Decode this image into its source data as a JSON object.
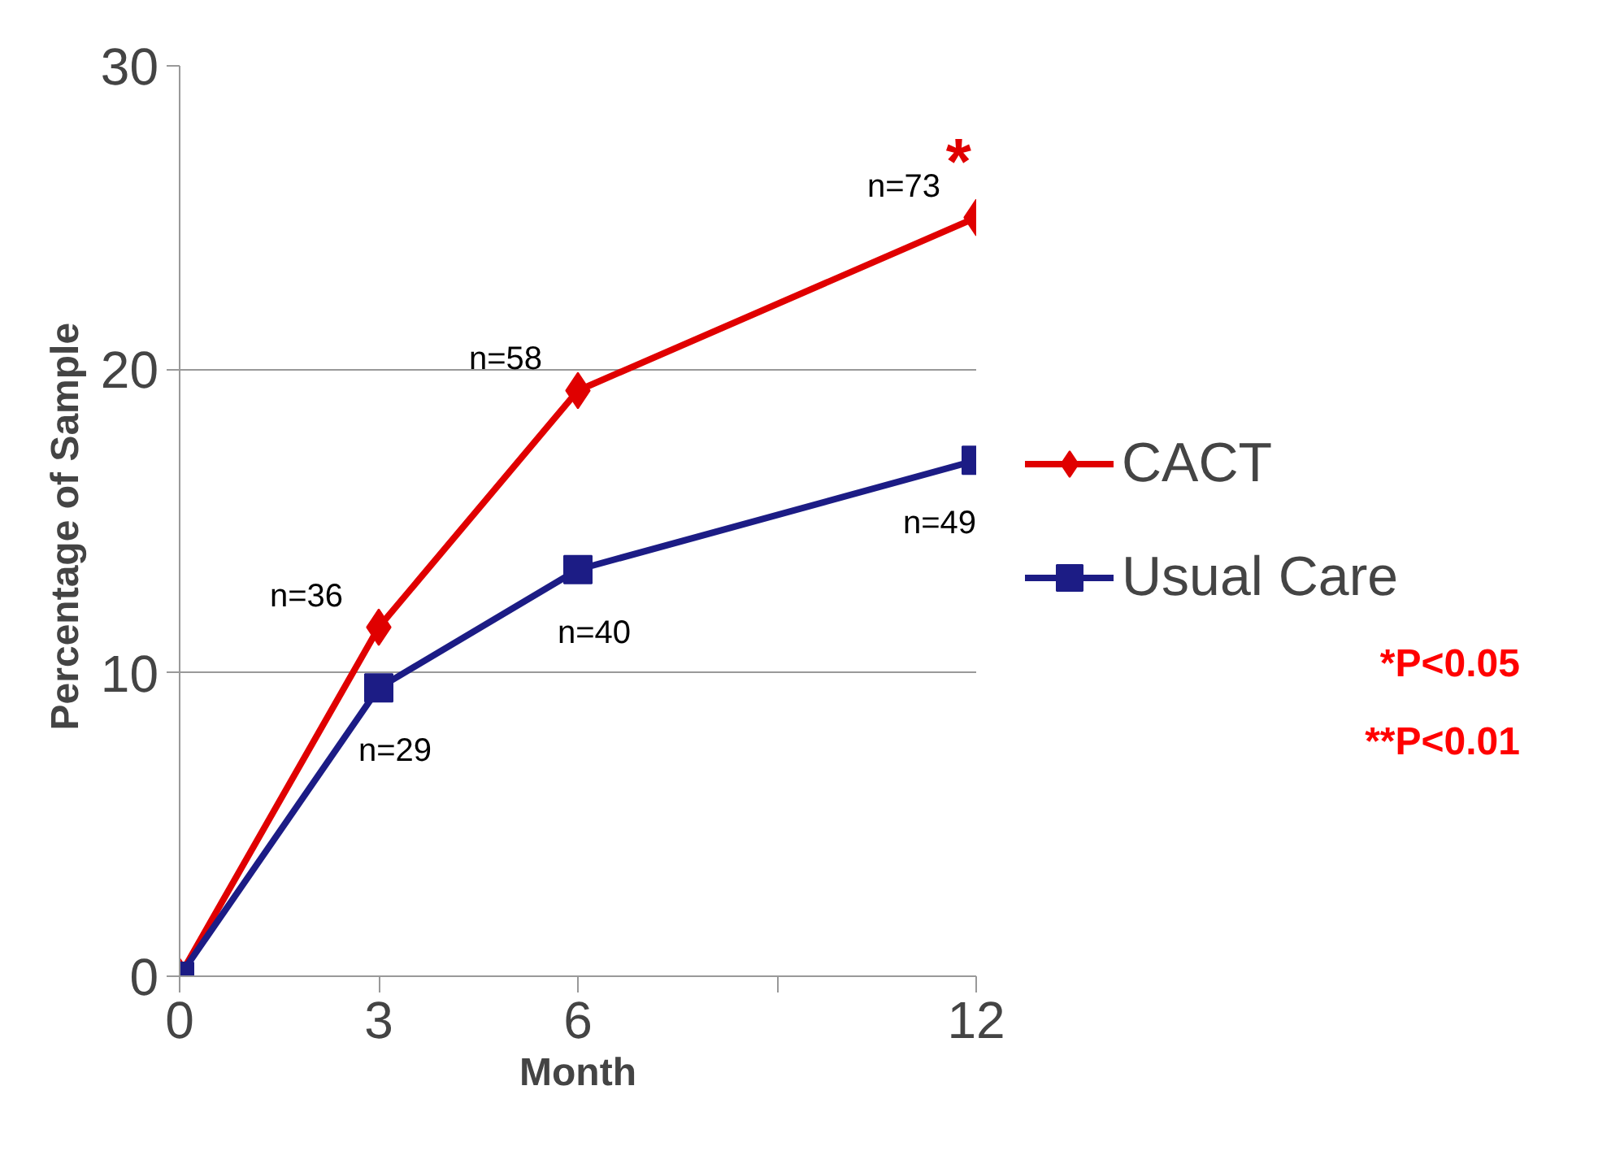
{
  "chart_data": {
    "type": "line",
    "xlabel": "Month",
    "ylabel": "Percentage  of Sample",
    "x": [
      0,
      3,
      6,
      12
    ],
    "series": [
      {
        "name": "CACT",
        "color": "#e00000",
        "marker": "diamond",
        "values": [
          0,
          11.5,
          19.3,
          25.0
        ]
      },
      {
        "name": "Usual Care",
        "color": "#1c1c85",
        "marker": "square",
        "values": [
          0,
          9.5,
          13.4,
          17.0
        ]
      }
    ],
    "xlim": [
      0,
      12
    ],
    "xticks": [
      0,
      3,
      6,
      {
        "value": 9,
        "label": null
      },
      12
    ],
    "ylim": [
      0,
      30
    ],
    "yticks": [
      0,
      10,
      20,
      30
    ],
    "grid": "y",
    "legend": "right",
    "line_style": "solid",
    "annotations": [
      {
        "text": "n=73",
        "x": 12,
        "y": 25.0
      },
      {
        "text": "n=58",
        "x": 6,
        "y": 19.3
      },
      {
        "text": "n=36",
        "x": 3,
        "y": 11.5
      },
      {
        "text": "n=29",
        "x": 3,
        "y": 9.5
      },
      {
        "text": "n=40",
        "x": 6,
        "y": 13.4
      },
      {
        "text": "n=49",
        "x": 12,
        "y": 17.0
      },
      {
        "text": "*",
        "x": 12,
        "y": 25.0
      },
      "*P<0.05",
      "**P<0.01"
    ]
  }
}
